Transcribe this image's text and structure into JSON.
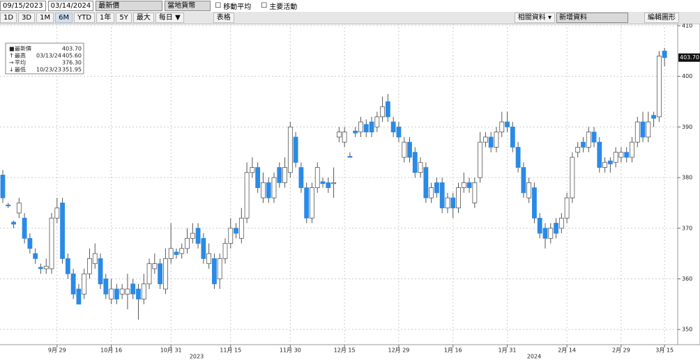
{
  "toolbar": {
    "start_date": "09/15/2023",
    "end_date": "03/14/2024",
    "price_field": "最新價",
    "currency": "當地貨幣",
    "moving_average": "移動平均",
    "key_events": "主要活動",
    "ranges": [
      "1D",
      "3D",
      "1M",
      "6M",
      "YTD",
      "1年",
      "5Y",
      "最大"
    ],
    "active_range": "6M",
    "frequency": "每日 ▼",
    "table": "表格",
    "related": "相關資料 ▾",
    "add_data": "新增資料",
    "edit_chart": "編輯圖形"
  },
  "chart_data": {
    "type": "candlestick",
    "categories": [
      null,
      null,
      null,
      null,
      null,
      null,
      null,
      null,
      null,
      null,
      "9月 29",
      null,
      null,
      null,
      null,
      null,
      null,
      null,
      null,
      null,
      "10月 16",
      null,
      null,
      null,
      null,
      null,
      null,
      null,
      null,
      null,
      null,
      "10月 31",
      null,
      null,
      null,
      null,
      null,
      null,
      null,
      null,
      null,
      null,
      "11月 15",
      null,
      null,
      null,
      null,
      null,
      null,
      null,
      null,
      null,
      null,
      "11月 30",
      null,
      null,
      null,
      null,
      null,
      null,
      null,
      null,
      null,
      "12月 15",
      null,
      null,
      null,
      null,
      null,
      null,
      null,
      null,
      null,
      "12月 29",
      null,
      null,
      null,
      null,
      null,
      null,
      null,
      null,
      null,
      "1月 16",
      null,
      null,
      null,
      null,
      null,
      null,
      null,
      null,
      null,
      "1月 31",
      null,
      null,
      null,
      null,
      null,
      null,
      null,
      null,
      null,
      null,
      "2月 14",
      null,
      null,
      null,
      null,
      null,
      null,
      null,
      null,
      null,
      "2月 29",
      null,
      null,
      null,
      null,
      null,
      null,
      null,
      "3月 15"
    ],
    "open": [
      380.5,
      374.6,
      371.2,
      373,
      372,
      368,
      365,
      362.3,
      362,
      362,
      372,
      375,
      364,
      361,
      358,
      357,
      361,
      363,
      364,
      360,
      356,
      358,
      357,
      357,
      359,
      358,
      356,
      359,
      362,
      363,
      358,
      364,
      365.3,
      365,
      366,
      368,
      370,
      368,
      363,
      364,
      360,
      364,
      367,
      370,
      368,
      372,
      381,
      382,
      376,
      379,
      376,
      382,
      379,
      381,
      388,
      382,
      378,
      372,
      378,
      379.2,
      379,
      378.8,
      388,
      387,
      384.2,
      389.2,
      389,
      390.5,
      391,
      390,
      392,
      395,
      391,
      390,
      384,
      387,
      385,
      381,
      382,
      376,
      379,
      379,
      374,
      376,
      374,
      378,
      379,
      375,
      380,
      387,
      388,
      386,
      389,
      391,
      390,
      386,
      382,
      376,
      378,
      372,
      370,
      368,
      371,
      370,
      372,
      376,
      385,
      387,
      386,
      389,
      387,
      382,
      383.3,
      383,
      384,
      385,
      384,
      387,
      391,
      388,
      392.3,
      392,
      405
    ],
    "high": [
      381.5,
      375,
      371.5,
      376,
      373,
      369,
      366,
      363,
      364,
      373,
      376,
      376,
      365,
      362,
      359,
      362,
      366,
      367,
      365,
      361,
      360,
      359,
      359,
      361,
      360,
      359,
      361,
      364,
      365,
      364,
      366,
      371,
      366,
      367,
      370,
      371,
      371,
      369,
      367,
      365,
      365,
      368,
      372,
      371,
      374,
      383,
      384,
      383,
      381,
      380,
      381,
      383,
      384,
      391,
      389,
      383,
      379,
      379,
      383,
      380,
      380,
      382,
      390,
      390,
      385,
      390,
      392,
      391.5,
      392,
      393,
      396,
      396.5,
      392,
      391,
      388,
      388,
      386,
      384,
      383,
      379,
      380,
      380,
      377,
      377,
      379,
      381,
      380,
      380,
      389,
      389,
      389,
      390,
      393,
      393,
      391,
      387,
      383,
      380,
      379,
      373,
      371,
      371,
      372,
      373,
      377,
      385,
      387,
      388,
      390,
      390,
      388,
      384,
      384,
      386,
      386,
      386,
      388,
      392,
      393,
      393,
      393,
      405,
      405.6
    ],
    "low": [
      375,
      374,
      370,
      372,
      367,
      365,
      363,
      361,
      361,
      361,
      371,
      363,
      360,
      356,
      355,
      356,
      360,
      362,
      358,
      356,
      355,
      355,
      356,
      354,
      356,
      351.95,
      355,
      358,
      361,
      358,
      357,
      363,
      364,
      364,
      365,
      367,
      366,
      363,
      362,
      358,
      358,
      363,
      366,
      368,
      367,
      371,
      380,
      377,
      375,
      375,
      375,
      378,
      378,
      380,
      382,
      377,
      371,
      371,
      377,
      378,
      377,
      376,
      387,
      386,
      384,
      388,
      388,
      388,
      388,
      389,
      391,
      391,
      388,
      387,
      383,
      383,
      380,
      380,
      375,
      375,
      376,
      373,
      373,
      372,
      373,
      377,
      377,
      374,
      379,
      386,
      385,
      385,
      388,
      389,
      385,
      381,
      376,
      375,
      371,
      368,
      366,
      367,
      368,
      369,
      371,
      375,
      384,
      385,
      385,
      386,
      381,
      381,
      381,
      382,
      383,
      383,
      383,
      386,
      387,
      387,
      390,
      391,
      402
    ],
    "close": [
      376,
      374.4,
      370.8,
      375,
      368,
      366,
      364,
      362,
      362.5,
      372,
      374,
      364,
      361,
      357,
      355,
      361,
      364,
      365,
      359,
      357,
      358,
      356,
      358,
      358,
      357,
      356,
      359,
      363,
      363,
      359,
      364,
      366,
      364.8,
      366,
      368,
      369,
      367,
      364,
      365,
      359,
      364,
      367,
      370,
      369,
      372,
      381,
      382,
      378,
      379,
      376,
      380,
      379,
      382,
      390,
      383,
      378,
      372,
      378,
      382,
      378.8,
      378,
      379,
      389,
      389,
      384,
      388.8,
      391,
      389,
      389,
      392,
      394,
      392,
      389,
      388,
      387,
      384,
      381,
      383,
      376,
      378,
      377,
      374,
      376,
      374,
      378,
      379,
      378,
      379,
      387,
      388,
      386,
      389,
      391,
      390,
      386,
      382,
      377,
      379,
      372,
      369,
      368,
      370,
      369,
      372,
      376,
      384,
      386,
      386,
      389,
      387,
      382,
      383,
      382.7,
      385,
      385,
      384,
      387,
      391,
      388,
      391,
      391.7,
      404,
      403.7
    ],
    "up_color": "#ffffff",
    "down_color": "#2b8ae6",
    "ylim": [
      347,
      410.4
    ],
    "yticks": [
      350,
      360,
      370,
      380,
      390,
      400,
      410
    ],
    "grid": true,
    "years": [
      "2023",
      "2024"
    ],
    "last_price_label": "403.70",
    "summary": [
      {
        "label": "最新價",
        "date": null,
        "value": "403.70"
      },
      {
        "label": "最高",
        "date": "03/13/24",
        "value": "405.60"
      },
      {
        "label": "平均",
        "date": null,
        "value": "376.30"
      },
      {
        "label": "最低",
        "date": "10/23/23",
        "value": "351.95"
      }
    ]
  }
}
